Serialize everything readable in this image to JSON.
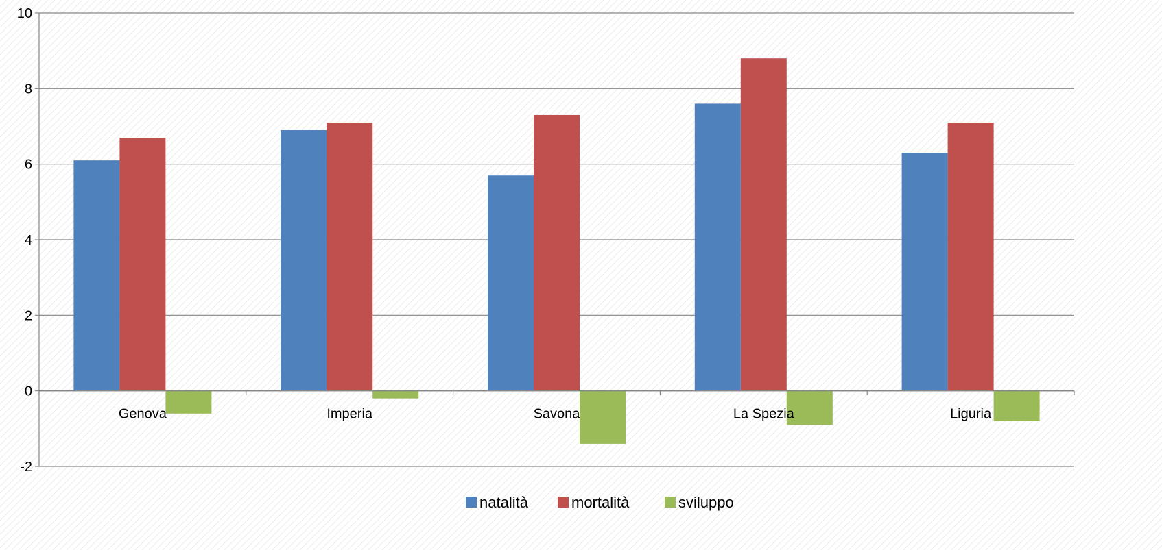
{
  "chart_data": {
    "type": "bar",
    "title": "",
    "xlabel": "",
    "ylabel": "",
    "categories": [
      "Genova",
      "Imperia",
      "Savona",
      "La Spezia",
      "Liguria"
    ],
    "series": [
      {
        "name": "natalità",
        "color": "#4F81BD",
        "values": [
          6.1,
          6.9,
          5.7,
          7.6,
          6.3
        ]
      },
      {
        "name": "mortalità",
        "color": "#C0504D",
        "values": [
          6.7,
          7.1,
          7.3,
          8.8,
          7.1
        ]
      },
      {
        "name": "sviluppo",
        "color": "#9BBB59",
        "values": [
          -0.6,
          -0.2,
          -1.4,
          -0.9,
          -0.8
        ]
      }
    ],
    "ylim": [
      -2,
      10
    ],
    "yticks": [
      -2,
      0,
      2,
      4,
      6,
      8,
      10
    ],
    "grid": true,
    "legend_position": "bottom",
    "category_label_position": "at-zero-line"
  }
}
